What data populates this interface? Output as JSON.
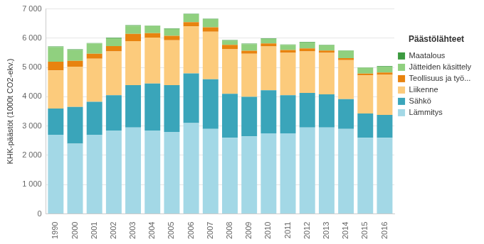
{
  "chart_data": {
    "type": "bar",
    "stacked": true,
    "grid": true,
    "legend": "right",
    "legend_title": "Päästölähteet",
    "y_label": "KHK-päästöt (1000t CO2-ekv.)",
    "categories": [
      "1990",
      "2000",
      "2001",
      "2002",
      "2003",
      "2004",
      "2005",
      "2006",
      "2007",
      "2008",
      "2009",
      "2010",
      "2011",
      "2012",
      "2013",
      "2014",
      "2015",
      "2016"
    ],
    "ylim": [
      0,
      7000
    ],
    "yticks": [
      0,
      {
        "value": 1000,
        "label": "1 000"
      },
      {
        "value": 2000,
        "label": "2 000"
      },
      {
        "value": 3000,
        "label": "3 000"
      },
      {
        "value": 4000,
        "label": "4 000"
      },
      {
        "value": 5000,
        "label": "5 000"
      },
      {
        "value": 6000,
        "label": "6 000"
      },
      {
        "value": 7000,
        "label": "7 000"
      }
    ],
    "series": [
      {
        "name": "Lämmitys",
        "color": "#a3d8e6",
        "values": [
          2700,
          2400,
          2700,
          2850,
          2950,
          2850,
          2800,
          3100,
          2900,
          2600,
          2650,
          2750,
          2750,
          2950,
          2950,
          2900,
          2600,
          2600
        ]
      },
      {
        "name": "Sähkö",
        "color": "#3aa5ba",
        "values": [
          900,
          1250,
          1130,
          1200,
          1450,
          1600,
          1600,
          1700,
          1700,
          1500,
          1350,
          1470,
          1300,
          1180,
          1130,
          1020,
          830,
          780
        ]
      },
      {
        "name": "Liikenne",
        "color": "#fccb7c",
        "values": [
          1300,
          1380,
          1470,
          1500,
          1500,
          1570,
          1530,
          1600,
          1620,
          1520,
          1470,
          1500,
          1450,
          1420,
          1420,
          1330,
          1300,
          1370
        ]
      },
      {
        "name": "Teollisuus ja työ...",
        "color": "#e8830f",
        "values": [
          300,
          200,
          170,
          180,
          250,
          150,
          150,
          150,
          150,
          150,
          100,
          100,
          100,
          100,
          80,
          70,
          60,
          80
        ]
      },
      {
        "name": "Jätteiden käsittely",
        "color": "#90d07f",
        "values": [
          500,
          370,
          350,
          270,
          280,
          250,
          240,
          270,
          280,
          150,
          230,
          160,
          170,
          210,
          180,
          250,
          200,
          200
        ]
      },
      {
        "name": "Maatalous",
        "color": "#3c9a40",
        "values": [
          20,
          20,
          15,
          15,
          15,
          15,
          15,
          15,
          15,
          15,
          15,
          15,
          15,
          15,
          15,
          15,
          15,
          15
        ]
      }
    ]
  }
}
